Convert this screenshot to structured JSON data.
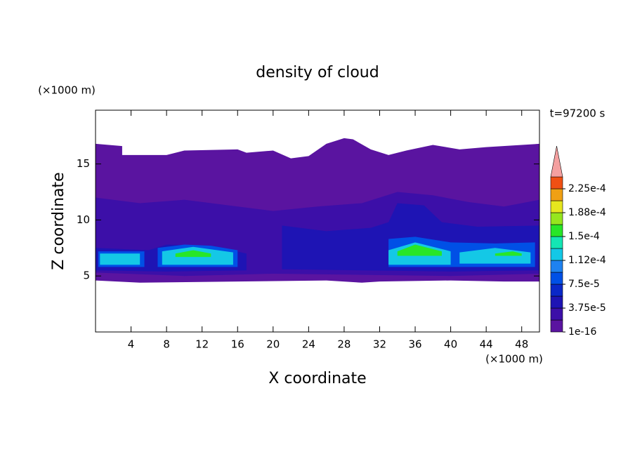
{
  "chart_data": {
    "type": "contour",
    "title": "density of cloud",
    "xlabel": "X coordinate",
    "ylabel": "Z coordinate",
    "x_unit": "(×1000 m)",
    "y_unit": "(×1000 m)",
    "annotation": "t=97200 s",
    "xlim": [
      0,
      50
    ],
    "ylim": [
      0,
      19.8
    ],
    "xticks": [
      4,
      8,
      12,
      16,
      20,
      24,
      28,
      32,
      36,
      40,
      44,
      48
    ],
    "yticks": [
      5,
      10,
      15
    ],
    "colorbar": {
      "levels": [
        1e-16,
        1.875e-05,
        3.75e-05,
        5.625e-05,
        7.5e-05,
        9.375e-05,
        0.0001125,
        0.00013125,
        0.00015,
        0.00016875,
        0.0001875,
        0.00020625,
        0.000225,
        0.00024375
      ],
      "colors": [
        "#5a14a0",
        "#3c0fa8",
        "#1e14b4",
        "#0a28c8",
        "#0050e6",
        "#1e82f0",
        "#14c8e6",
        "#14e6b4",
        "#28e628",
        "#96e61e",
        "#e6e61e",
        "#f0a014",
        "#f05014"
      ],
      "extend_color": "#f4a0a0",
      "ticks": [
        {
          "value": 1e-16,
          "label": "1e-16"
        },
        {
          "value": 3.75e-05,
          "label": "3.75e-5"
        },
        {
          "value": 7.5e-05,
          "label": "7.5e-5"
        },
        {
          "value": 0.0001125,
          "label": "1.12e-4"
        },
        {
          "value": 0.00015,
          "label": "1.5e-4"
        },
        {
          "value": 0.0001875,
          "label": "1.88e-4"
        },
        {
          "value": 0.000225,
          "label": "2.25e-4"
        }
      ]
    },
    "contours": [
      {
        "level": 1e-16,
        "x": [
          0,
          3,
          3,
          8,
          10,
          16,
          17,
          20,
          22,
          24,
          26,
          28,
          29,
          31,
          33,
          35,
          38,
          41,
          44,
          48,
          50,
          50,
          46,
          40,
          32,
          30,
          26,
          16,
          5,
          0
        ],
        "y": [
          16.8,
          16.6,
          15.8,
          15.8,
          16.2,
          16.3,
          16,
          16.2,
          15.5,
          15.7,
          16.8,
          17.3,
          17.2,
          16.3,
          15.8,
          16.2,
          16.7,
          16.3,
          16.5,
          16.7,
          16.8,
          4.5,
          4.5,
          4.6,
          4.5,
          4.4,
          4.6,
          4.5,
          4.4,
          4.6
        ]
      },
      {
        "level": 1.875e-05,
        "x": [
          0,
          5,
          10,
          15,
          20,
          25,
          30,
          34,
          38,
          42,
          46,
          50,
          50,
          40,
          30,
          20,
          10,
          0
        ],
        "y": [
          12,
          11.5,
          11.8,
          11.3,
          10.8,
          11.2,
          11.5,
          12.5,
          12.2,
          11.6,
          11.2,
          11.8,
          5.2,
          5,
          5.1,
          5.2,
          5,
          5.3
        ]
      },
      {
        "level": 3.75e-05,
        "x": [
          0,
          6,
          8,
          13,
          17,
          17,
          8,
          0
        ],
        "y": [
          7.5,
          7.3,
          7.8,
          7.7,
          7,
          5.5,
          5.4,
          5.5
        ]
      },
      {
        "level": 3.75e-05,
        "x": [
          21,
          26,
          31,
          33,
          34,
          37,
          39,
          43,
          50,
          50,
          40,
          30,
          21
        ],
        "y": [
          9.5,
          9,
          9.3,
          9.8,
          11.5,
          11.3,
          9.8,
          9.4,
          9.5,
          5.5,
          5.4,
          5.5,
          5.6
        ]
      },
      {
        "level": 7.5e-05,
        "x": [
          0.3,
          5.5,
          5.5,
          0.3
        ],
        "y": [
          7.2,
          7.2,
          5.8,
          5.8
        ]
      },
      {
        "level": 7.5e-05,
        "x": [
          7,
          10,
          13,
          16,
          16,
          7
        ],
        "y": [
          7.5,
          7.8,
          7.7,
          7.3,
          5.8,
          5.8
        ]
      },
      {
        "level": 7.5e-05,
        "x": [
          33,
          36,
          40,
          45,
          49.5,
          49.5,
          33
        ],
        "y": [
          8.3,
          8.5,
          8,
          7.9,
          8,
          5.8,
          5.8
        ]
      },
      {
        "level": 0.0001125,
        "x": [
          0.5,
          5,
          5,
          0.5
        ],
        "y": [
          7,
          7,
          6,
          6
        ]
      },
      {
        "level": 0.0001125,
        "x": [
          7.5,
          11,
          15.5,
          15.5,
          7.5
        ],
        "y": [
          7.2,
          7.6,
          7.1,
          6,
          6
        ]
      },
      {
        "level": 0.0001125,
        "x": [
          33,
          36,
          40,
          40,
          33
        ],
        "y": [
          7.3,
          8,
          7.2,
          6,
          6
        ]
      },
      {
        "level": 0.0001125,
        "x": [
          41,
          45,
          49,
          49,
          41
        ],
        "y": [
          7.1,
          7.5,
          7.1,
          6.1,
          6.1
        ]
      },
      {
        "level": 0.00015,
        "x": [
          9,
          11,
          13,
          13,
          9
        ],
        "y": [
          7,
          7.3,
          7,
          6.7,
          6.7
        ]
      },
      {
        "level": 0.00015,
        "x": [
          34,
          36,
          39,
          39,
          34
        ],
        "y": [
          7.2,
          7.8,
          7.2,
          6.8,
          6.8
        ]
      },
      {
        "level": 0.00015,
        "x": [
          45,
          47,
          48,
          48,
          45
        ],
        "y": [
          7,
          7.2,
          7,
          6.8,
          6.8
        ]
      }
    ]
  }
}
